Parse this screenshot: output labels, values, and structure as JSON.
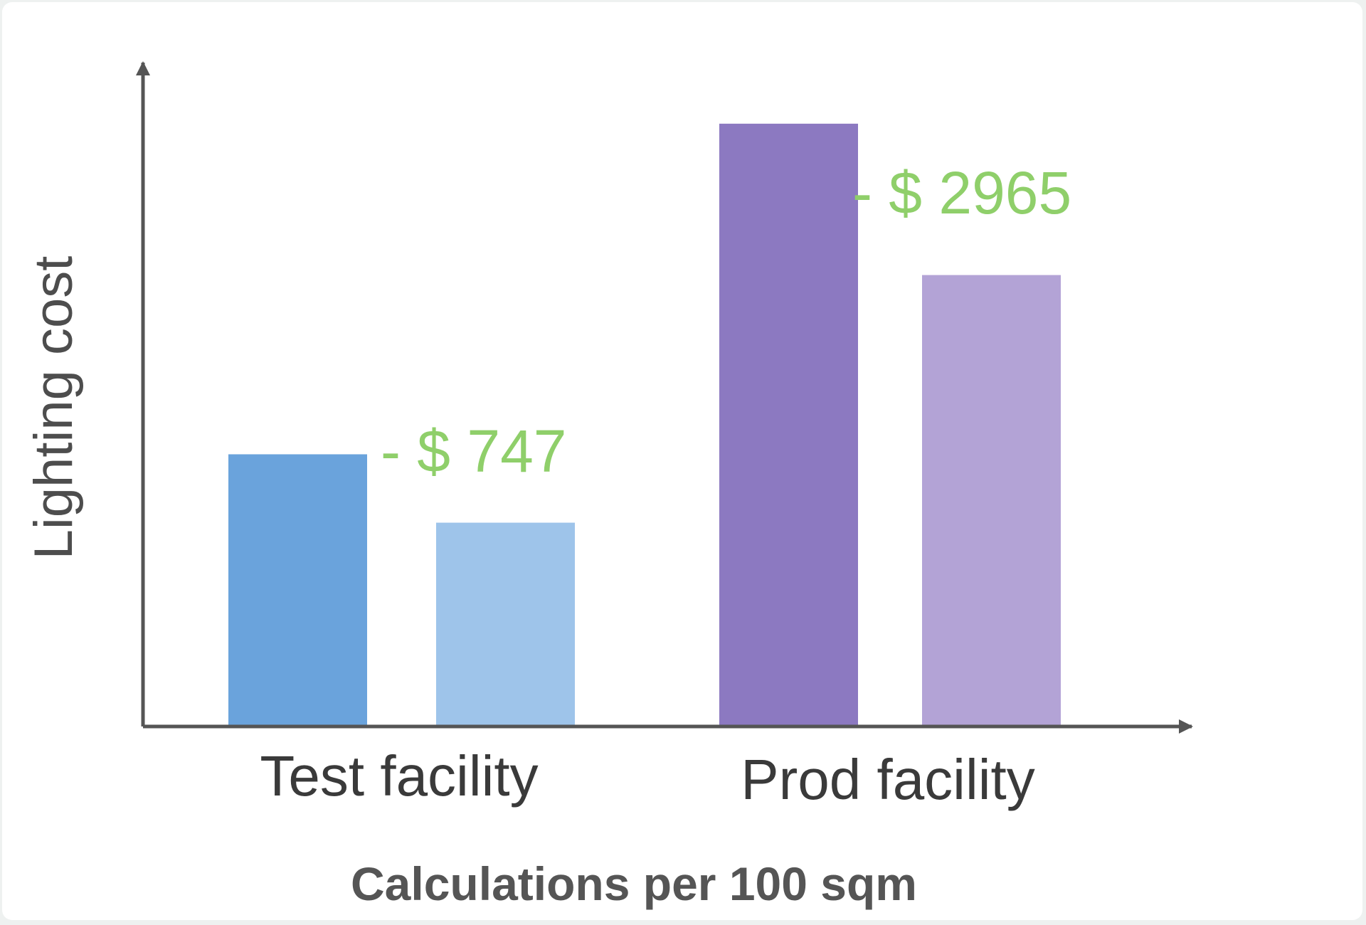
{
  "chart_data": {
    "type": "bar",
    "ylabel": "Lighting cost",
    "xlabel": "Calculations per 100 sqm",
    "categories": [
      "Test facility",
      "Prod facility"
    ],
    "groups": [
      {
        "category": "Test facility",
        "values": [
          410,
          307
        ],
        "colors": [
          "#6aa3dc",
          "#9ec4ea"
        ],
        "difference_label": "- $ 747"
      },
      {
        "category": "Prod facility",
        "values": [
          908,
          680
        ],
        "colors": [
          "#8c79c1",
          "#b3a3d6"
        ],
        "difference_label": "- $ 2965"
      }
    ],
    "ylim": [
      0,
      1000
    ],
    "colors": {
      "axis": "#555555",
      "axis_label": "#4d4d4d",
      "annotation": "#8fcf6a"
    },
    "grid": false,
    "legend": "none"
  }
}
